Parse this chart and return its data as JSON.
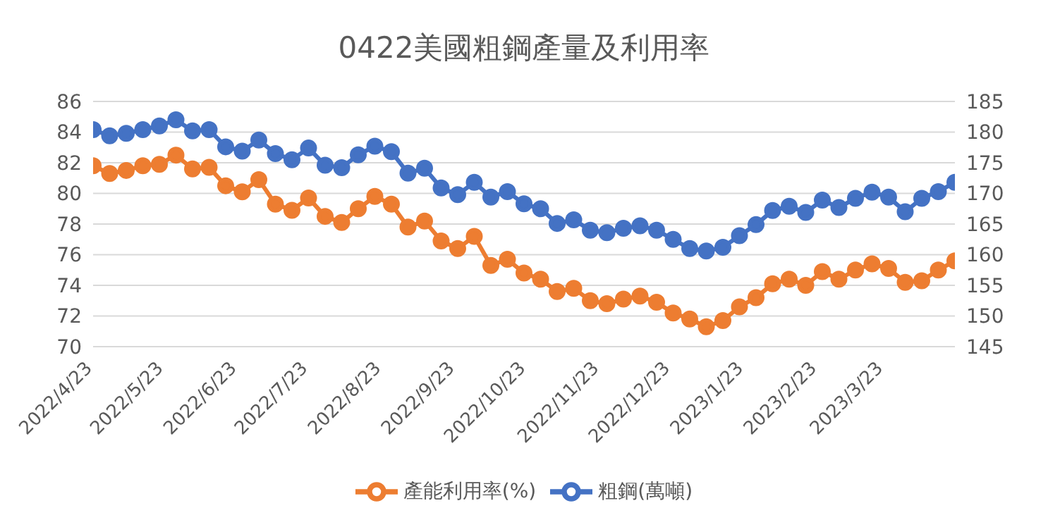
{
  "chart_data": {
    "type": "line",
    "title": "0422美國粗鋼產量及利用率",
    "x": [
      "2022-04-23",
      "2022-04-30",
      "2022-05-07",
      "2022-05-14",
      "2022-05-21",
      "2022-05-28",
      "2022-06-04",
      "2022-06-11",
      "2022-06-18",
      "2022-06-25",
      "2022-07-02",
      "2022-07-09",
      "2022-07-16",
      "2022-07-23",
      "2022-07-30",
      "2022-08-06",
      "2022-08-13",
      "2022-08-20",
      "2022-08-27",
      "2022-09-03",
      "2022-09-10",
      "2022-09-17",
      "2022-09-24",
      "2022-10-01",
      "2022-10-08",
      "2022-10-15",
      "2022-10-22",
      "2022-10-29",
      "2022-11-05",
      "2022-11-12",
      "2022-11-19",
      "2022-11-26",
      "2022-12-03",
      "2022-12-10",
      "2022-12-17",
      "2022-12-24",
      "2022-12-31",
      "2023-01-07",
      "2023-01-14",
      "2023-01-21",
      "2023-01-28",
      "2023-02-04",
      "2023-02-11",
      "2023-02-18",
      "2023-02-25",
      "2023-03-04",
      "2023-03-11",
      "2023-03-18",
      "2023-03-25",
      "2023-04-01",
      "2023-04-08",
      "2023-04-15",
      "2023-04-22"
    ],
    "series": [
      {
        "name": "產能利用率(%)",
        "color": "#ed7d31",
        "values": [
          81.8,
          81.3,
          81.5,
          81.8,
          81.9,
          82.5,
          81.6,
          81.7,
          80.5,
          80.1,
          80.9,
          79.3,
          78.9,
          79.7,
          78.5,
          78.1,
          79.0,
          79.8,
          79.3,
          77.8,
          78.2,
          76.9,
          76.4,
          77.2,
          75.3,
          75.7,
          74.8,
          74.4,
          73.6,
          73.8,
          73.0,
          72.8,
          73.1,
          73.3,
          72.9,
          72.2,
          71.8,
          71.3,
          71.7,
          72.6,
          73.2,
          74.1,
          74.4,
          74.0,
          74.9,
          74.4,
          75.0,
          75.4,
          75.1,
          74.2,
          74.3,
          75.0,
          75.6
        ]
      },
      {
        "name": "粗鋼(萬噸)",
        "color": "#4472c4",
        "axis": "y2",
        "values": [
          180.4,
          179.4,
          179.8,
          180.4,
          181.0,
          182.0,
          180.2,
          180.4,
          177.6,
          176.9,
          178.7,
          176.5,
          175.5,
          177.4,
          174.6,
          174.2,
          176.3,
          177.7,
          176.8,
          173.3,
          174.1,
          170.9,
          169.8,
          171.8,
          169.4,
          170.3,
          168.3,
          167.5,
          165.1,
          165.7,
          164.0,
          163.6,
          164.3,
          164.7,
          164.0,
          162.5,
          161.0,
          160.6,
          161.2,
          163.1,
          164.9,
          167.2,
          167.9,
          166.9,
          168.9,
          167.7,
          169.2,
          170.2,
          169.4,
          167.0,
          169.2,
          170.3,
          171.8
        ]
      }
    ],
    "xlim": [
      "2022-04-23",
      "2023-04-22"
    ],
    "xticks": [
      {
        "value": "2022-04-23",
        "label": "2022/4/23"
      },
      {
        "value": "2022-05-23",
        "label": "2022/5/23"
      },
      {
        "value": "2022-06-23",
        "label": "2022/6/23"
      },
      {
        "value": "2022-07-23",
        "label": "2022/7/23"
      },
      {
        "value": "2022-08-23",
        "label": "2022/8/23"
      },
      {
        "value": "2022-09-23",
        "label": "2022/9/23"
      },
      {
        "value": "2022-10-23",
        "label": "2022/10/23"
      },
      {
        "value": "2022-11-23",
        "label": "2022/11/23"
      },
      {
        "value": "2022-12-23",
        "label": "2022/12/23"
      },
      {
        "value": "2023-01-23",
        "label": "2023/1/23"
      },
      {
        "value": "2023-02-23",
        "label": "2023/2/23"
      },
      {
        "value": "2023-03-23",
        "label": "2023/3/23"
      }
    ],
    "ylim": [
      70,
      86
    ],
    "yticks": [
      70,
      72,
      74,
      76,
      78,
      80,
      82,
      84,
      86
    ],
    "y2lim": [
      145,
      185
    ],
    "y2ticks": [
      145,
      150,
      155,
      160,
      165,
      170,
      175,
      180,
      185
    ],
    "grid": "y",
    "legend": "bottom",
    "marker": "circle",
    "line_style": "solid"
  }
}
